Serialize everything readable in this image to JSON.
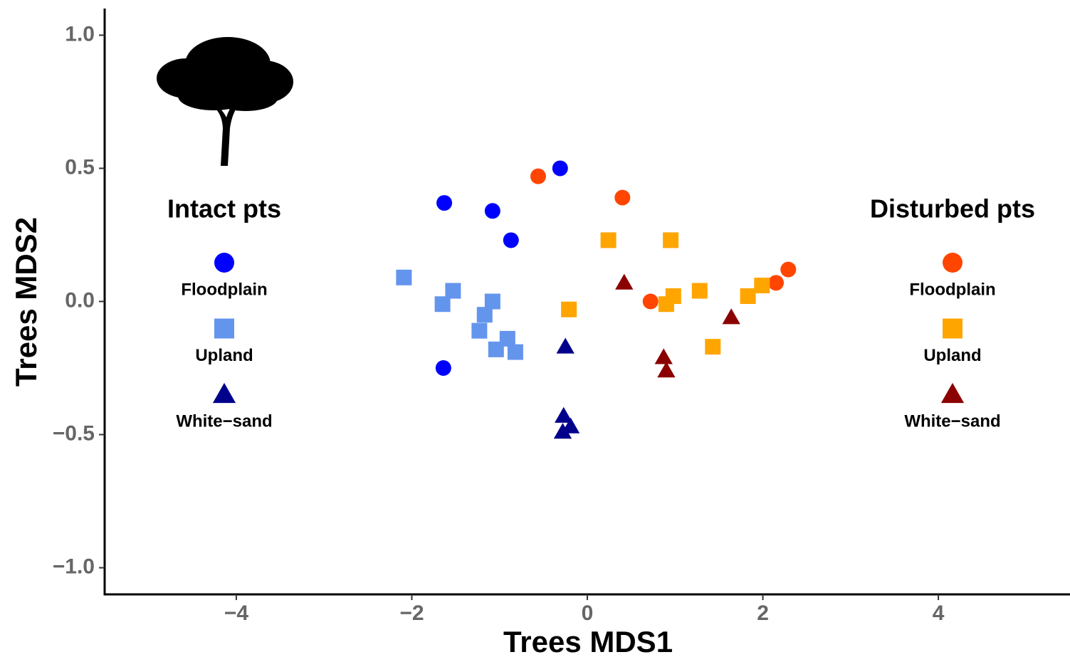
{
  "chart_data": {
    "type": "scatter",
    "xlabel": "Trees MDS1",
    "ylabel": "Trees MDS2",
    "xlim": [
      -5.5,
      5.5
    ],
    "ylim": [
      -1.1,
      1.1
    ],
    "xticks": [
      {
        "value": -4,
        "label": "−4"
      },
      {
        "value": -2,
        "label": "−2"
      },
      0,
      2,
      4
    ],
    "yticks": [
      {
        "value": -1.0,
        "label": "−1.0"
      },
      {
        "value": -0.5,
        "label": "−0.5"
      },
      {
        "value": 0.0,
        "label": "0.0"
      },
      {
        "value": 0.5,
        "label": "0.5"
      },
      {
        "value": 1.0,
        "label": "1.0"
      }
    ],
    "groups": [
      {
        "title": "Intact pts",
        "series": [
          {
            "name": "Floodplain",
            "marker": "circle",
            "color": "#0000ff",
            "x": [
              -1.63,
              -1.08,
              -0.87,
              -0.31,
              -1.64
            ],
            "y": [
              0.37,
              0.34,
              0.23,
              0.5,
              -0.25
            ]
          },
          {
            "name": "Upland",
            "marker": "square",
            "color": "#6495ed",
            "x": [
              -2.09,
              -1.53,
              -1.65,
              -1.08,
              -1.17,
              -1.23,
              -0.91,
              -1.04,
              -0.82
            ],
            "y": [
              0.09,
              0.04,
              -0.01,
              0.0,
              -0.05,
              -0.11,
              -0.14,
              -0.18,
              -0.19
            ]
          },
          {
            "name": "White−sand",
            "marker": "triangle",
            "color": "#00008b",
            "x": [
              -0.25,
              -0.27,
              -0.19,
              -0.28
            ],
            "y": [
              -0.17,
              -0.43,
              -0.47,
              -0.49
            ]
          }
        ]
      },
      {
        "title": "Disturbed pts",
        "series": [
          {
            "name": "Floodplain",
            "marker": "circle",
            "color": "#ff4500",
            "x": [
              -0.56,
              0.4,
              0.72,
              2.15,
              2.29
            ],
            "y": [
              0.47,
              0.39,
              0.0,
              0.07,
              0.12
            ]
          },
          {
            "name": "Upland",
            "marker": "square",
            "color": "#ffa500",
            "x": [
              0.24,
              0.95,
              -0.21,
              0.98,
              0.9,
              1.28,
              1.83,
              1.99,
              1.43
            ],
            "y": [
              0.23,
              0.23,
              -0.03,
              0.02,
              -0.01,
              0.04,
              0.02,
              0.06,
              -0.17
            ]
          },
          {
            "name": "White−sand",
            "marker": "triangle",
            "color": "#8b0000",
            "x": [
              0.42,
              1.64,
              0.87,
              0.9
            ],
            "y": [
              0.07,
              -0.06,
              -0.21,
              -0.26
            ]
          }
        ]
      }
    ]
  }
}
